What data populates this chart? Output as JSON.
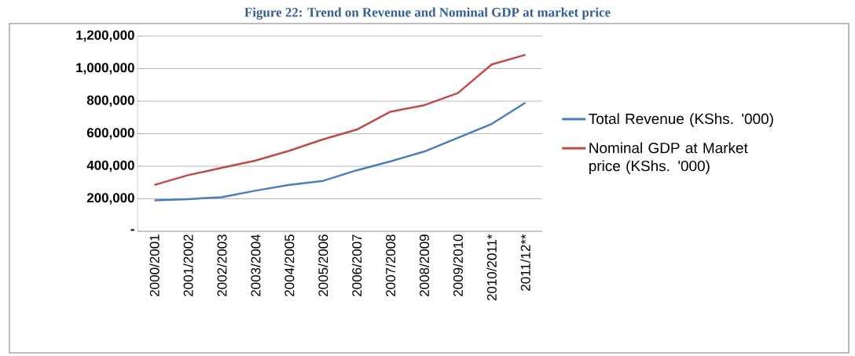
{
  "chart_data": {
    "type": "line",
    "title": "Figure 22: Trend on Revenue and Nominal GDP at market price",
    "categories": [
      "2000/2001",
      "2001/2002",
      "2002/2003",
      "2003/2004",
      "2004/2005",
      "2005/2006",
      "2006/2007",
      "2007/2008",
      "2008/2009",
      "2009/2010",
      "2010/2011*",
      "2011/12**"
    ],
    "series": [
      {
        "name": "Total Revenue (KShs. '000)",
        "color": "#4a7ebb",
        "values": [
          190000,
          198000,
          210000,
          250000,
          285000,
          310000,
          375000,
          430000,
          490000,
          575000,
          660000,
          790000
        ]
      },
      {
        "name": "Nominal GDP at Market price (KShs. '000)",
        "color": "#be4b48",
        "values": [
          285000,
          345000,
          390000,
          435000,
          495000,
          565000,
          625000,
          735000,
          775000,
          850000,
          1025000,
          1085000
        ]
      }
    ],
    "ylim": [
      0,
      1200000
    ],
    "yticks": [
      {
        "value": 0,
        "label": "-"
      },
      {
        "value": 200000,
        "label": "200,000"
      },
      {
        "value": 400000,
        "label": "400,000"
      },
      {
        "value": 600000,
        "label": "600,000"
      },
      {
        "value": 800000,
        "label": "800,000"
      },
      {
        "value": 1000000,
        "label": "1,000,000"
      },
      {
        "value": 1200000,
        "label": "1,200,000"
      }
    ],
    "grid": "y",
    "legend": "right",
    "marker": "none",
    "line_style": "solid"
  }
}
